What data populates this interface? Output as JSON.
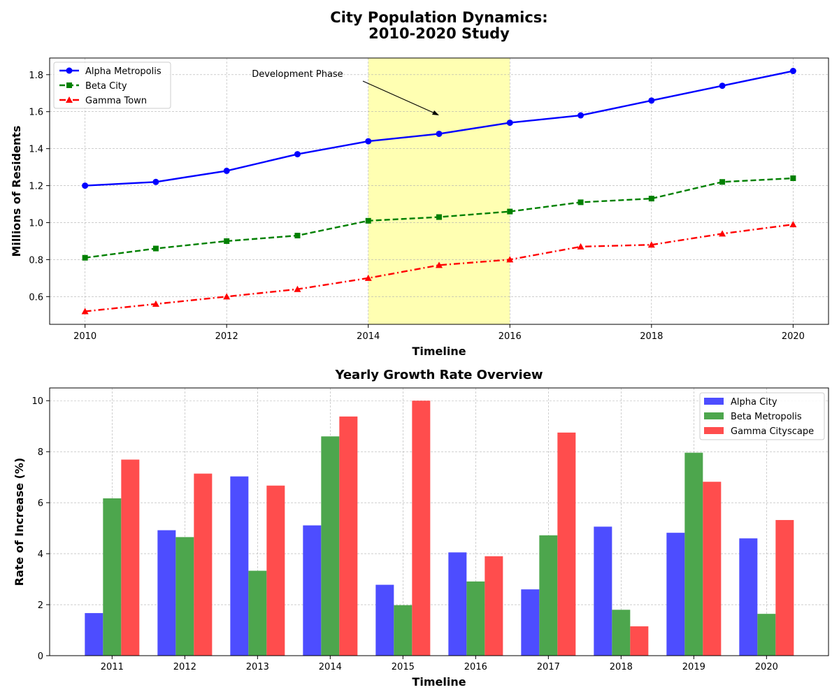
{
  "figure_title_line1": "City Population Dynamics:",
  "figure_title_line2": "2010-2020 Study",
  "chart_data": [
    {
      "type": "line",
      "title": "",
      "xlabel": "Timeline",
      "ylabel": "Millions of Residents",
      "x": [
        2010,
        2011,
        2012,
        2013,
        2014,
        2015,
        2016,
        2017,
        2018,
        2019,
        2020
      ],
      "xlim": [
        2009.5,
        2020.5
      ],
      "ylim": [
        0.45,
        1.89
      ],
      "xticks": [
        "2010",
        "2012",
        "2014",
        "2016",
        "2018",
        "2020"
      ],
      "yticks": [
        "0.6",
        "0.8",
        "1.0",
        "1.2",
        "1.4",
        "1.6",
        "1.8"
      ],
      "grid": true,
      "legend_position": "upper-left",
      "series": [
        {
          "name": "Alpha Metropolis",
          "color": "#0000ff",
          "marker": "circle",
          "linestyle": "solid",
          "values": [
            1.2,
            1.22,
            1.28,
            1.37,
            1.44,
            1.48,
            1.54,
            1.58,
            1.66,
            1.74,
            1.82
          ]
        },
        {
          "name": "Beta City",
          "color": "#008000",
          "marker": "square",
          "linestyle": "dashed",
          "values": [
            0.81,
            0.86,
            0.9,
            0.93,
            1.01,
            1.03,
            1.06,
            1.11,
            1.13,
            1.22,
            1.24
          ]
        },
        {
          "name": "Gamma Town",
          "color": "#ff0000",
          "marker": "triangle",
          "linestyle": "dashdot",
          "values": [
            0.52,
            0.56,
            0.6,
            0.64,
            0.7,
            0.77,
            0.8,
            0.87,
            0.88,
            0.94,
            0.99
          ]
        }
      ],
      "shaded_region": {
        "x_start": 2014,
        "x_end": 2016,
        "color": "#ffff66"
      },
      "annotation": {
        "text": "Development Phase",
        "text_x": 2013.0,
        "text_y": 1.78,
        "point_x": 2015.0,
        "point_y": 1.58
      }
    },
    {
      "type": "bar",
      "title": "Yearly Growth Rate Overview",
      "xlabel": "Timeline",
      "ylabel": "Rate of Increase (%)",
      "categories": [
        "2011",
        "2012",
        "2013",
        "2014",
        "2015",
        "2016",
        "2017",
        "2018",
        "2019",
        "2020"
      ],
      "ylim": [
        0,
        10.5
      ],
      "yticks": [
        "0",
        "2",
        "4",
        "6",
        "8",
        "10"
      ],
      "grid": true,
      "legend_position": "upper-right",
      "series": [
        {
          "name": "Alpha City",
          "color": "#4d4dff",
          "values": [
            1.67,
            4.92,
            7.03,
            5.11,
            2.78,
            4.05,
            2.6,
            5.06,
            4.82,
            4.6
          ]
        },
        {
          "name": "Beta Metropolis",
          "color": "#4da64d",
          "values": [
            6.17,
            4.65,
            3.33,
            8.6,
            1.98,
            2.91,
            4.72,
            1.8,
            7.96,
            1.64
          ]
        },
        {
          "name": "Gamma Cityscape",
          "color": "#ff4d4d",
          "values": [
            7.69,
            7.14,
            6.67,
            9.38,
            10.0,
            3.9,
            8.75,
            1.15,
            6.82,
            5.32
          ]
        }
      ]
    }
  ]
}
